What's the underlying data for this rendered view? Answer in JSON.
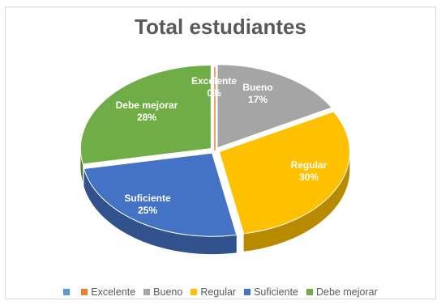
{
  "chart_data": {
    "type": "pie",
    "style": "3d",
    "title": "Total estudiantes",
    "categories": [
      "",
      "Excelente",
      "Bueno",
      "Regular",
      "Suficiente",
      "Debe mejorar"
    ],
    "slices": [
      {
        "label": "Excelente",
        "value": 0,
        "display": "0%",
        "color": "#ED7D31"
      },
      {
        "label": "Bueno",
        "value": 17,
        "display": "17%",
        "color": "#A5A5A5"
      },
      {
        "label": "Regular",
        "value": 30,
        "display": "30%",
        "color": "#FFC000"
      },
      {
        "label": "Suficiente",
        "value": 25,
        "display": "25%",
        "color": "#4472C4"
      },
      {
        "label": "Debe mejorar",
        "value": 28,
        "display": "28%",
        "color": "#70AD47"
      }
    ],
    "legend": {
      "position": "bottom",
      "items": [
        {
          "label": "",
          "color": "#5B9BD5"
        },
        {
          "label": "Excelente",
          "color": "#ED7D31"
        },
        {
          "label": "Bueno",
          "color": "#A5A5A5"
        },
        {
          "label": "Regular",
          "color": "#FFC000"
        },
        {
          "label": "Suficiente",
          "color": "#4472C4"
        },
        {
          "label": "Debe mejorar",
          "color": "#70AD47"
        }
      ]
    }
  }
}
